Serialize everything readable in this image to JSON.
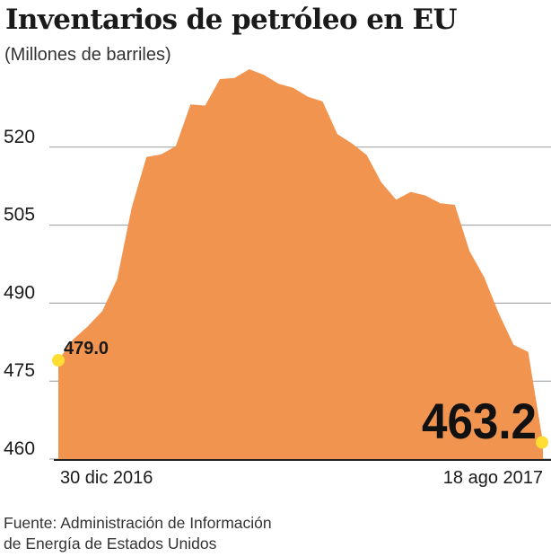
{
  "title": "Inventarios de petróleo en EU",
  "subtitle": "(Millones de barriles)",
  "source_line1": "Fuente: Administración de Información",
  "source_line2": "de Energía de Estados Unidos",
  "colors": {
    "area": "#f0944f",
    "marker": "#ffdd33",
    "grid": "#9a9a9a",
    "text": "#1a1a1a"
  },
  "chart_data": {
    "type": "area",
    "title": "Inventarios de petróleo en EU",
    "ylabel": "(Millones de barriles)",
    "ylim": [
      460,
      535
    ],
    "yticks": [
      460,
      475,
      490,
      505,
      520
    ],
    "grid": true,
    "x_start_label": "30 dic 2016",
    "x_end_label": "18 ago 2017",
    "x": [
      "2016-12-30",
      "2017-01-06",
      "2017-01-13",
      "2017-01-20",
      "2017-01-27",
      "2017-02-03",
      "2017-02-10",
      "2017-02-17",
      "2017-02-24",
      "2017-03-03",
      "2017-03-10",
      "2017-03-17",
      "2017-03-24",
      "2017-03-31",
      "2017-04-07",
      "2017-04-14",
      "2017-04-21",
      "2017-04-28",
      "2017-05-05",
      "2017-05-12",
      "2017-05-19",
      "2017-05-26",
      "2017-06-02",
      "2017-06-09",
      "2017-06-16",
      "2017-06-23",
      "2017-06-30",
      "2017-07-07",
      "2017-07-14",
      "2017-07-21",
      "2017-07-28",
      "2017-08-04",
      "2017-08-11",
      "2017-08-18"
    ],
    "values": [
      479.0,
      483.0,
      485.5,
      488.5,
      494.6,
      508.4,
      518.1,
      518.6,
      520.2,
      528.2,
      528.0,
      533.1,
      533.3,
      535.0,
      533.9,
      532.2,
      531.4,
      529.7,
      528.8,
      522.5,
      520.7,
      518.5,
      513.2,
      509.9,
      511.4,
      510.7,
      509.2,
      508.9,
      500.0,
      495.0,
      488.0,
      482.0,
      480.6,
      463.2
    ],
    "annotations": [
      {
        "label": "479.0",
        "x": "2016-12-30",
        "y": 479.0
      },
      {
        "label": "463.2",
        "x": "2017-08-18",
        "y": 463.2
      }
    ]
  }
}
